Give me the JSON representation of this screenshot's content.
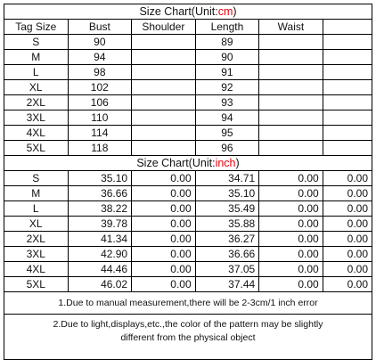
{
  "cm_chart": {
    "title_prefix": "Size Chart(Unit:",
    "unit": "cm",
    "title_suffix": ")",
    "headers": [
      "Tag Size",
      "Bust",
      "Shoulder",
      "Length",
      "Waist"
    ],
    "rows": [
      [
        "S",
        "90",
        "",
        "89",
        ""
      ],
      [
        "M",
        "94",
        "",
        "90",
        ""
      ],
      [
        "L",
        "98",
        "",
        "91",
        ""
      ],
      [
        "XL",
        "102",
        "",
        "92",
        ""
      ],
      [
        "2XL",
        "106",
        "",
        "93",
        ""
      ],
      [
        "3XL",
        "110",
        "",
        "94",
        ""
      ],
      [
        "4XL",
        "114",
        "",
        "95",
        ""
      ],
      [
        "5XL",
        "118",
        "",
        "96",
        ""
      ]
    ]
  },
  "inch_chart": {
    "title_prefix": "Size Chart(Unit:",
    "unit": "inch",
    "title_suffix": ")",
    "rows": [
      [
        "S",
        "35.10",
        "0.00",
        "34.71",
        "0.00",
        "0.00"
      ],
      [
        "M",
        "36.66",
        "0.00",
        "35.10",
        "0.00",
        "0.00"
      ],
      [
        "L",
        "38.22",
        "0.00",
        "35.49",
        "0.00",
        "0.00"
      ],
      [
        "XL",
        "39.78",
        "0.00",
        "35.88",
        "0.00",
        "0.00"
      ],
      [
        "2XL",
        "41.34",
        "0.00",
        "36.27",
        "0.00",
        "0.00"
      ],
      [
        "3XL",
        "42.90",
        "0.00",
        "36.66",
        "0.00",
        "0.00"
      ],
      [
        "4XL",
        "44.46",
        "0.00",
        "37.05",
        "0.00",
        "0.00"
      ],
      [
        "5XL",
        "46.02",
        "0.00",
        "37.44",
        "0.00",
        "0.00"
      ]
    ]
  },
  "notes": {
    "note1": "1.Due to manual measurement,there will be 2-3cm/1 inch error",
    "note2_line1": "2.Due to light,displays,etc.,the color of the pattern may be slightly",
    "note2_line2": "different from the physical object"
  },
  "colors": {
    "unit_red": "#e8000b",
    "border": "#000000"
  }
}
